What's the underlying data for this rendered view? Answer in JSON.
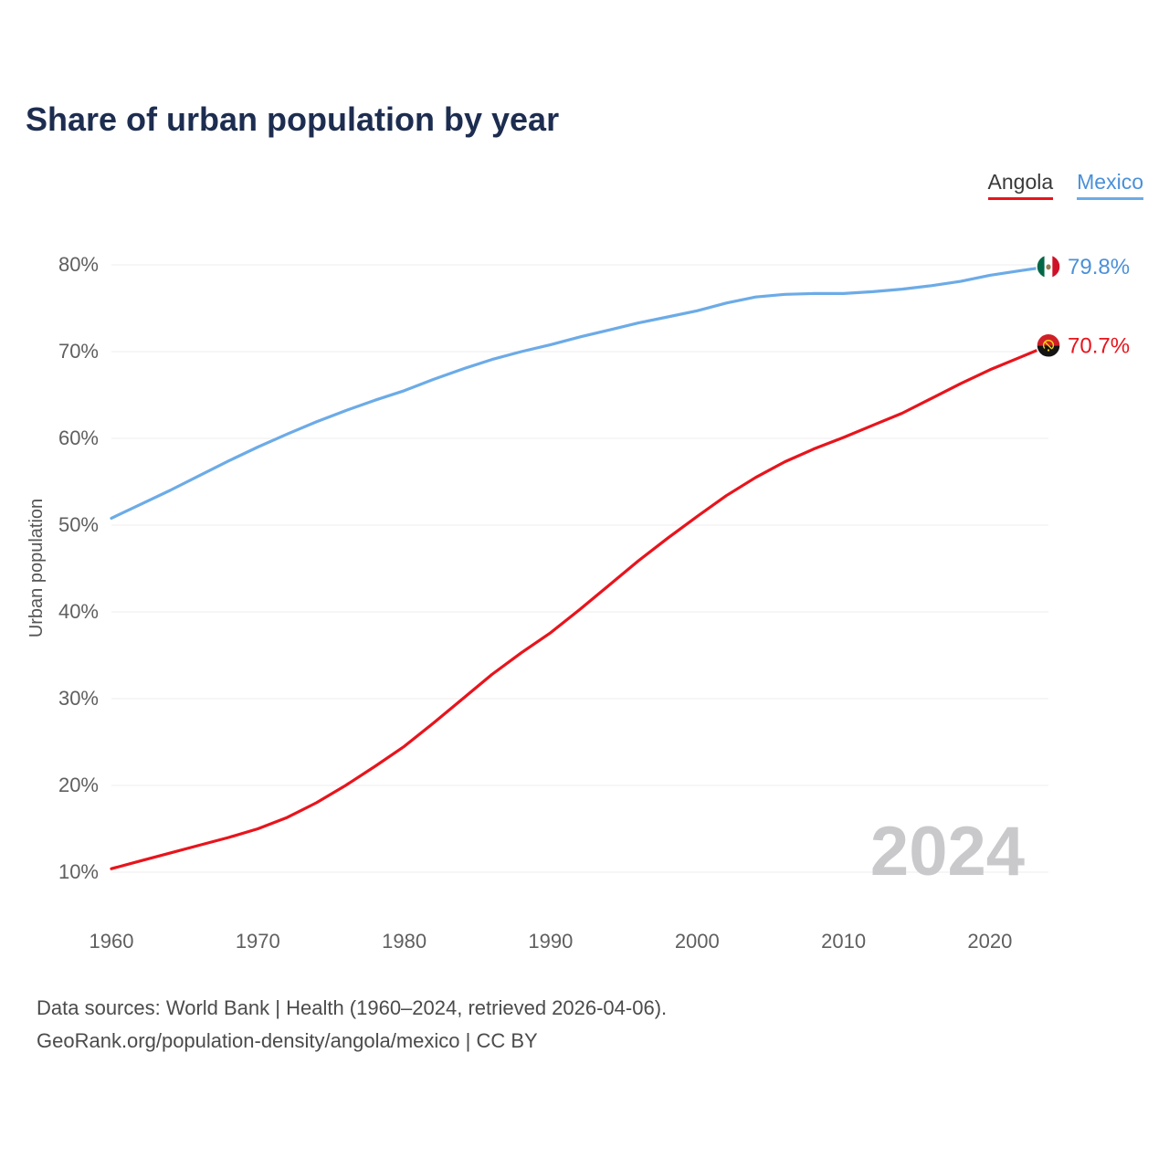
{
  "legend": {
    "items": [
      {
        "id": "angola",
        "label": "Angola",
        "underline_color": "#e8141c",
        "label_color": "#3a3a3a"
      },
      {
        "id": "mexico",
        "label": "Mexico",
        "underline_color": "#6cabe7",
        "label_color": "#4a90d9"
      }
    ]
  },
  "chart_data": {
    "type": "line",
    "title": "Share of urban population by year",
    "ylabel": "Urban population",
    "xlabel": "",
    "xlim": [
      1960,
      2024
    ],
    "ylim": [
      10,
      80
    ],
    "x_ticks": [
      1960,
      1970,
      1980,
      1990,
      2000,
      2010,
      2020
    ],
    "y_ticks": [
      10,
      20,
      30,
      40,
      50,
      60,
      70,
      80
    ],
    "grid": "horizontal",
    "legend_position": "top-right",
    "watermark": "2024",
    "x": [
      1960,
      1962,
      1964,
      1966,
      1968,
      1970,
      1972,
      1974,
      1976,
      1978,
      1980,
      1982,
      1984,
      1986,
      1988,
      1990,
      1992,
      1994,
      1996,
      1998,
      2000,
      2002,
      2004,
      2006,
      2008,
      2010,
      2012,
      2014,
      2016,
      2018,
      2020,
      2022,
      2024
    ],
    "series": [
      {
        "name": "Angola",
        "color": "#e8141c",
        "end_label": "70.7%",
        "end_value": 70.7,
        "flag_icon": "angola-flag-icon",
        "values": [
          10.4,
          11.3,
          12.2,
          13.1,
          14.0,
          15.0,
          16.3,
          18.0,
          20.0,
          22.2,
          24.5,
          27.2,
          30.0,
          32.8,
          35.3,
          37.6,
          40.3,
          43.1,
          45.9,
          48.5,
          51.0,
          53.4,
          55.5,
          57.3,
          58.8,
          60.1,
          61.5,
          62.9,
          64.6,
          66.3,
          67.9,
          69.3,
          70.7
        ]
      },
      {
        "name": "Mexico",
        "color": "#6cabe7",
        "label_color": "#4a90d9",
        "end_label": "79.8%",
        "end_value": 79.8,
        "flag_icon": "mexico-flag-icon",
        "values": [
          50.8,
          52.4,
          54.0,
          55.7,
          57.4,
          59.0,
          60.5,
          61.9,
          63.2,
          64.4,
          65.5,
          66.8,
          68.0,
          69.1,
          70.0,
          70.8,
          71.7,
          72.5,
          73.3,
          74.0,
          74.7,
          75.6,
          76.3,
          76.6,
          76.7,
          76.7,
          76.9,
          77.2,
          77.6,
          78.1,
          78.8,
          79.3,
          79.8
        ]
      }
    ]
  },
  "footer": {
    "line1": "Data sources: World Bank | Health (1960–2024, retrieved 2026-04-06).",
    "line2": "GeoRank.org/population-density/angola/mexico | CC BY"
  }
}
